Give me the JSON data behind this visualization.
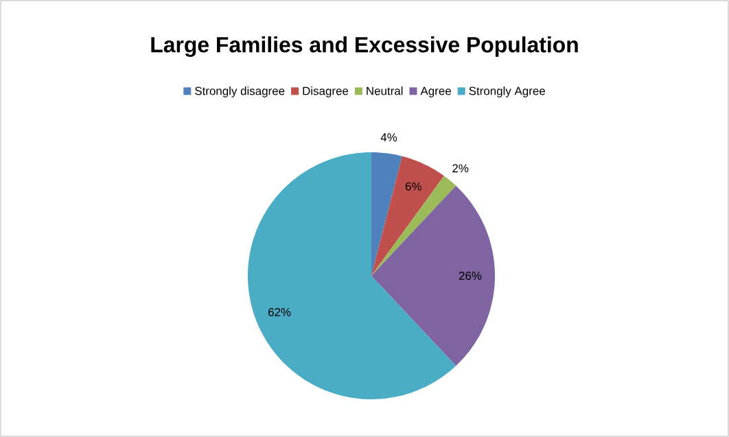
{
  "chart_data": {
    "type": "pie",
    "title": "Large Families and Excessive Population",
    "categories": [
      "Strongly disagree",
      "Disagree",
      "Neutral",
      "Agree",
      "Strongly  Agree"
    ],
    "values": [
      4,
      6,
      2,
      26,
      62
    ],
    "value_labels": [
      "4%",
      "6%",
      "2%",
      "26%",
      "62%"
    ],
    "colors": [
      "#4f81bd",
      "#c0504d",
      "#9bbb59",
      "#8064a2",
      "#4bacc6"
    ],
    "legend": "top"
  }
}
